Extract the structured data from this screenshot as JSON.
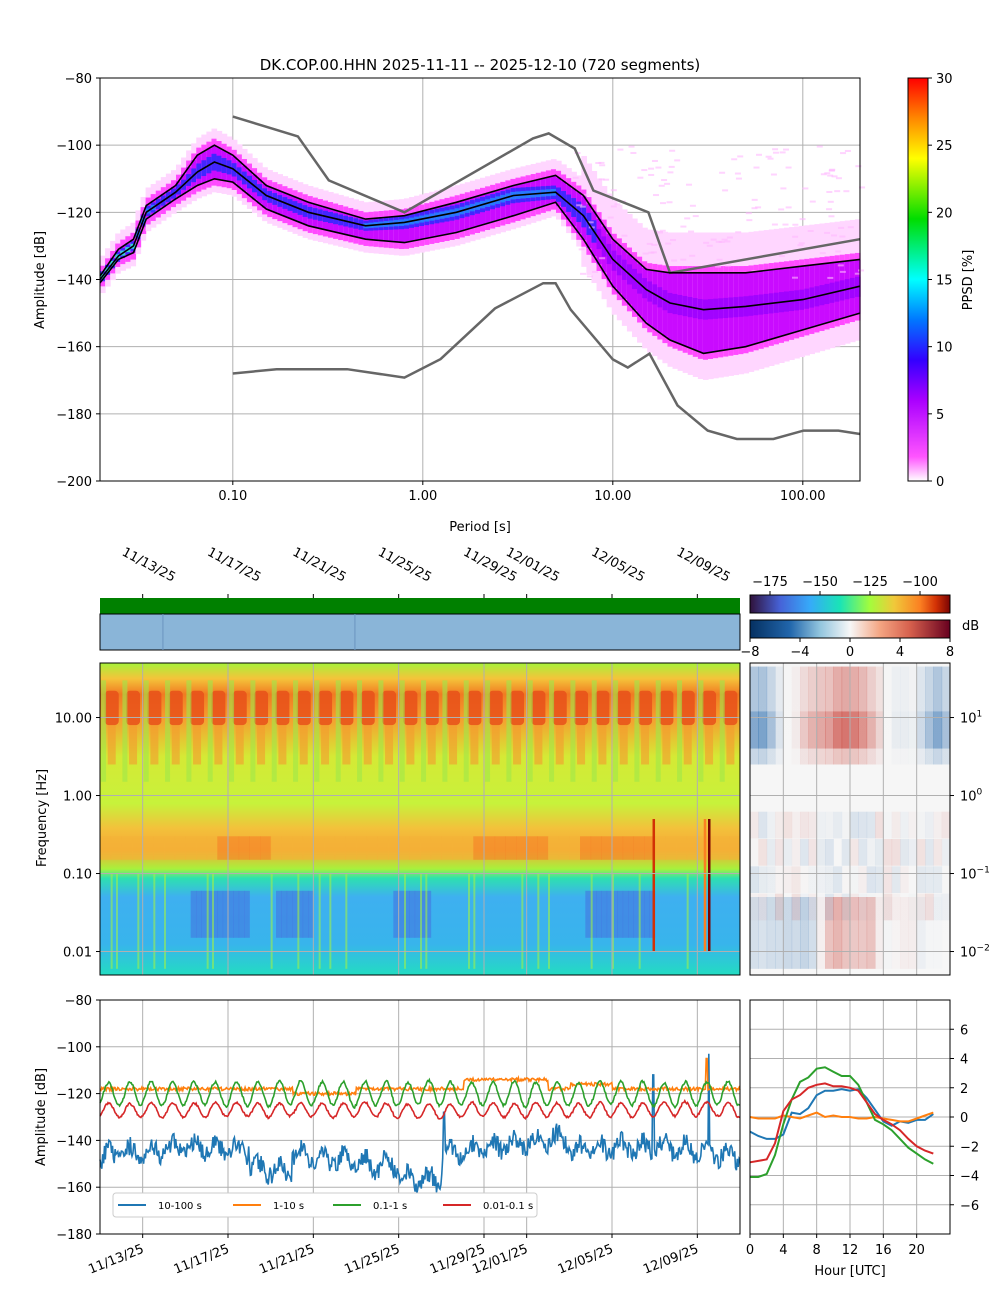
{
  "figure": {
    "title": "DK.COP.00.HHN   2025-11-11 -- 2025-12-10  (720 segments)"
  },
  "chart_data": [
    {
      "id": "ppsd",
      "type": "heatmap",
      "title": "DK.COP.00.HHN   2025-11-11 -- 2025-12-10  (720 segments)",
      "xlabel": "Period [s]",
      "ylabel": "Amplitude [dB]",
      "xscale": "log",
      "xlim": [
        0.02,
        200
      ],
      "ylim": [
        -200,
        -80
      ],
      "xticks": [
        0.1,
        1,
        10,
        100
      ],
      "xtick_labels": [
        "0.10",
        "1.00",
        "10.00",
        "100.00"
      ],
      "yticks": [
        -200,
        -180,
        -160,
        -140,
        -120,
        -100,
        -80
      ],
      "colorbar": {
        "label": "PPSD [%]",
        "range": [
          0,
          30
        ],
        "ticks": [
          0,
          5,
          10,
          15,
          20,
          25,
          30
        ]
      },
      "model_curves": [
        {
          "name": "NHNM",
          "color": "#666666",
          "points": [
            [
              0.1,
              -91.5
            ],
            [
              0.22,
              -97.4
            ],
            [
              0.32,
              -110.5
            ],
            [
              0.8,
              -120
            ],
            [
              3.8,
              -98
            ],
            [
              4.6,
              -96.5
            ],
            [
              6.3,
              -101
            ],
            [
              7.9,
              -113.5
            ],
            [
              15.4,
              -120
            ],
            [
              20,
              -138
            ],
            [
              200,
              -128
            ]
          ]
        },
        {
          "name": "NLNM",
          "color": "#666666",
          "points": [
            [
              0.1,
              -168
            ],
            [
              0.17,
              -166.7
            ],
            [
              0.4,
              -166.7
            ],
            [
              0.8,
              -169.2
            ],
            [
              1.24,
              -163.7
            ],
            [
              2.4,
              -148.6
            ],
            [
              4.3,
              -141.1
            ],
            [
              5.0,
              -141.1
            ],
            [
              6.0,
              -149
            ],
            [
              10,
              -163.8
            ],
            [
              12,
              -166.2
            ],
            [
              15.6,
              -162.1
            ],
            [
              21.9,
              -177.5
            ],
            [
              31.6,
              -185
            ],
            [
              45,
              -187.5
            ],
            [
              70,
              -187.5
            ],
            [
              101,
              -185
            ],
            [
              154,
              -185
            ],
            [
              200,
              -186
            ]
          ]
        }
      ],
      "percentile_curves": [
        {
          "name": "upper",
          "points": [
            [
              0.02,
              -139
            ],
            [
              0.025,
              -131
            ],
            [
              0.03,
              -128
            ],
            [
              0.035,
              -118
            ],
            [
              0.05,
              -112
            ],
            [
              0.065,
              -103
            ],
            [
              0.08,
              -100
            ],
            [
              0.1,
              -103
            ],
            [
              0.15,
              -112
            ],
            [
              0.25,
              -117
            ],
            [
              0.5,
              -122
            ],
            [
              0.8,
              -121
            ],
            [
              1.5,
              -117
            ],
            [
              3,
              -112
            ],
            [
              5,
              -109
            ],
            [
              7,
              -115
            ],
            [
              10,
              -128
            ],
            [
              15,
              -137
            ],
            [
              20,
              -138
            ],
            [
              50,
              -138
            ],
            [
              100,
              -136
            ],
            [
              200,
              -134
            ]
          ]
        },
        {
          "name": "mode",
          "points": [
            [
              0.02,
              -140
            ],
            [
              0.025,
              -133
            ],
            [
              0.03,
              -130
            ],
            [
              0.035,
              -120
            ],
            [
              0.05,
              -114
            ],
            [
              0.065,
              -108
            ],
            [
              0.08,
              -105
            ],
            [
              0.1,
              -107
            ],
            [
              0.15,
              -115
            ],
            [
              0.25,
              -120
            ],
            [
              0.5,
              -124
            ],
            [
              0.8,
              -123
            ],
            [
              1.5,
              -120
            ],
            [
              3,
              -115
            ],
            [
              5,
              -114
            ],
            [
              7,
              -121
            ],
            [
              10,
              -134
            ],
            [
              15,
              -143
            ],
            [
              20,
              -147
            ],
            [
              30,
              -149
            ],
            [
              50,
              -148
            ],
            [
              100,
              -146
            ],
            [
              200,
              -142
            ]
          ]
        },
        {
          "name": "lower",
          "points": [
            [
              0.02,
              -141
            ],
            [
              0.025,
              -134
            ],
            [
              0.03,
              -132
            ],
            [
              0.035,
              -122
            ],
            [
              0.05,
              -116
            ],
            [
              0.065,
              -112
            ],
            [
              0.08,
              -110
            ],
            [
              0.1,
              -111
            ],
            [
              0.15,
              -119
            ],
            [
              0.25,
              -124
            ],
            [
              0.5,
              -128
            ],
            [
              0.8,
              -129
            ],
            [
              1.5,
              -126
            ],
            [
              3,
              -121
            ],
            [
              5,
              -117
            ],
            [
              7,
              -128
            ],
            [
              10,
              -142
            ],
            [
              15,
              -153
            ],
            [
              20,
              -158
            ],
            [
              30,
              -162
            ],
            [
              50,
              -160
            ],
            [
              100,
              -155
            ],
            [
              200,
              -150
            ]
          ]
        }
      ]
    },
    {
      "id": "spectrogram",
      "type": "heatmap",
      "ylabel": "Frequency [Hz]",
      "yscale": "log",
      "ylim": [
        0.005,
        50
      ],
      "yticks": [
        0.01,
        0.1,
        1,
        10
      ],
      "ytick_labels": [
        "0.01",
        "0.10",
        "1.00",
        "10.00"
      ],
      "date_ticks": [
        "11/13/25",
        "11/17/25",
        "11/21/25",
        "11/25/25",
        "11/29/25",
        "12/01/25",
        "12/05/25",
        "12/09/25"
      ],
      "date_tick_days": [
        2,
        6,
        10,
        14,
        18,
        20,
        24,
        28
      ],
      "days": 30,
      "colorbar": {
        "ticks": [
          -175,
          -150,
          -125,
          -100
        ],
        "range": [
          -185,
          -85
        ]
      },
      "data_availability": "continuous",
      "gaps_days": [
        2.95,
        11.95
      ]
    },
    {
      "id": "diurnal_spectrogram",
      "type": "heatmap",
      "yscale": "log",
      "ytick_labels": [
        "10^1",
        "10^0",
        "10^-1",
        "10^-2"
      ],
      "yticks": [
        10,
        1,
        0.1,
        0.01
      ],
      "colorbar": {
        "label": "dB",
        "range": [
          -8,
          8
        ],
        "ticks": [
          -8,
          -4,
          0,
          4,
          8
        ]
      }
    },
    {
      "id": "band_timeseries",
      "type": "line",
      "ylabel": "Amplitude [dB]",
      "ylim": [
        -180,
        -80
      ],
      "yticks": [
        -180,
        -160,
        -140,
        -120,
        -100,
        -80
      ],
      "date_ticks": [
        "11/13/25",
        "11/17/25",
        "11/21/25",
        "11/25/25",
        "11/29/25",
        "12/01/25",
        "12/05/25",
        "12/09/25"
      ],
      "series": [
        {
          "name": "10-100 s",
          "color": "#1f77b4",
          "mean": -147,
          "amp": 5,
          "noise": 5
        },
        {
          "name": "1-10 s",
          "color": "#ff7f0e",
          "mean": -118,
          "amp": 1.5,
          "noise": 1.2
        },
        {
          "name": "0.1-1 s",
          "color": "#2ca02c",
          "mean": -120,
          "amp": 5,
          "noise": 1
        },
        {
          "name": "0.01-0.1 s",
          "color": "#d62728",
          "mean": -127,
          "amp": 3,
          "noise": 0.8
        }
      ]
    },
    {
      "id": "diurnal_bands",
      "type": "line",
      "xlabel": "Hour [UTC]",
      "x": [
        0,
        1,
        2,
        3,
        4,
        5,
        6,
        7,
        8,
        9,
        10,
        11,
        12,
        13,
        14,
        15,
        16,
        17,
        18,
        19,
        20,
        21,
        22
      ],
      "xticks": [
        0,
        4,
        8,
        12,
        16,
        20
      ],
      "ylim": [
        -8,
        8
      ],
      "yticks": [
        -6,
        -4,
        -2,
        0,
        2,
        4,
        6
      ],
      "series": [
        {
          "name": "10-100 s",
          "color": "#1f77b4",
          "values": [
            -1.0,
            -1.3,
            -1.5,
            -1.5,
            -1.2,
            0.3,
            0.2,
            0.6,
            1.5,
            1.8,
            1.8,
            1.9,
            1.8,
            1.9,
            1.3,
            0.5,
            -0.3,
            -0.6,
            -0.3,
            -0.4,
            -0.2,
            -0.2,
            0.2
          ]
        },
        {
          "name": "1-10 s",
          "color": "#ff7f0e",
          "values": [
            0.0,
            -0.1,
            -0.1,
            -0.1,
            0.1,
            0.0,
            -0.1,
            0.1,
            0.3,
            0.0,
            0.1,
            0.0,
            0.0,
            -0.1,
            -0.1,
            0.0,
            -0.1,
            -0.2,
            -0.3,
            -0.3,
            -0.1,
            0.1,
            0.3
          ]
        },
        {
          "name": "0.1-1 s",
          "color": "#2ca02c",
          "values": [
            -4.1,
            -4.1,
            -3.9,
            -2.6,
            -0.5,
            1.2,
            2.4,
            2.7,
            3.3,
            3.4,
            3.1,
            2.8,
            2.8,
            2.2,
            1.0,
            -0.2,
            -0.5,
            -0.9,
            -1.5,
            -2.1,
            -2.5,
            -2.9,
            -3.2
          ]
        },
        {
          "name": "0.01-0.1 s",
          "color": "#d62728",
          "values": [
            -3.1,
            -3.0,
            -2.9,
            -1.8,
            0.4,
            1.2,
            1.5,
            2.0,
            2.2,
            2.3,
            2.1,
            2.1,
            2.0,
            1.8,
            1.0,
            0.2,
            -0.2,
            -0.5,
            -0.9,
            -1.5,
            -2.0,
            -2.3,
            -2.5
          ]
        }
      ]
    }
  ]
}
